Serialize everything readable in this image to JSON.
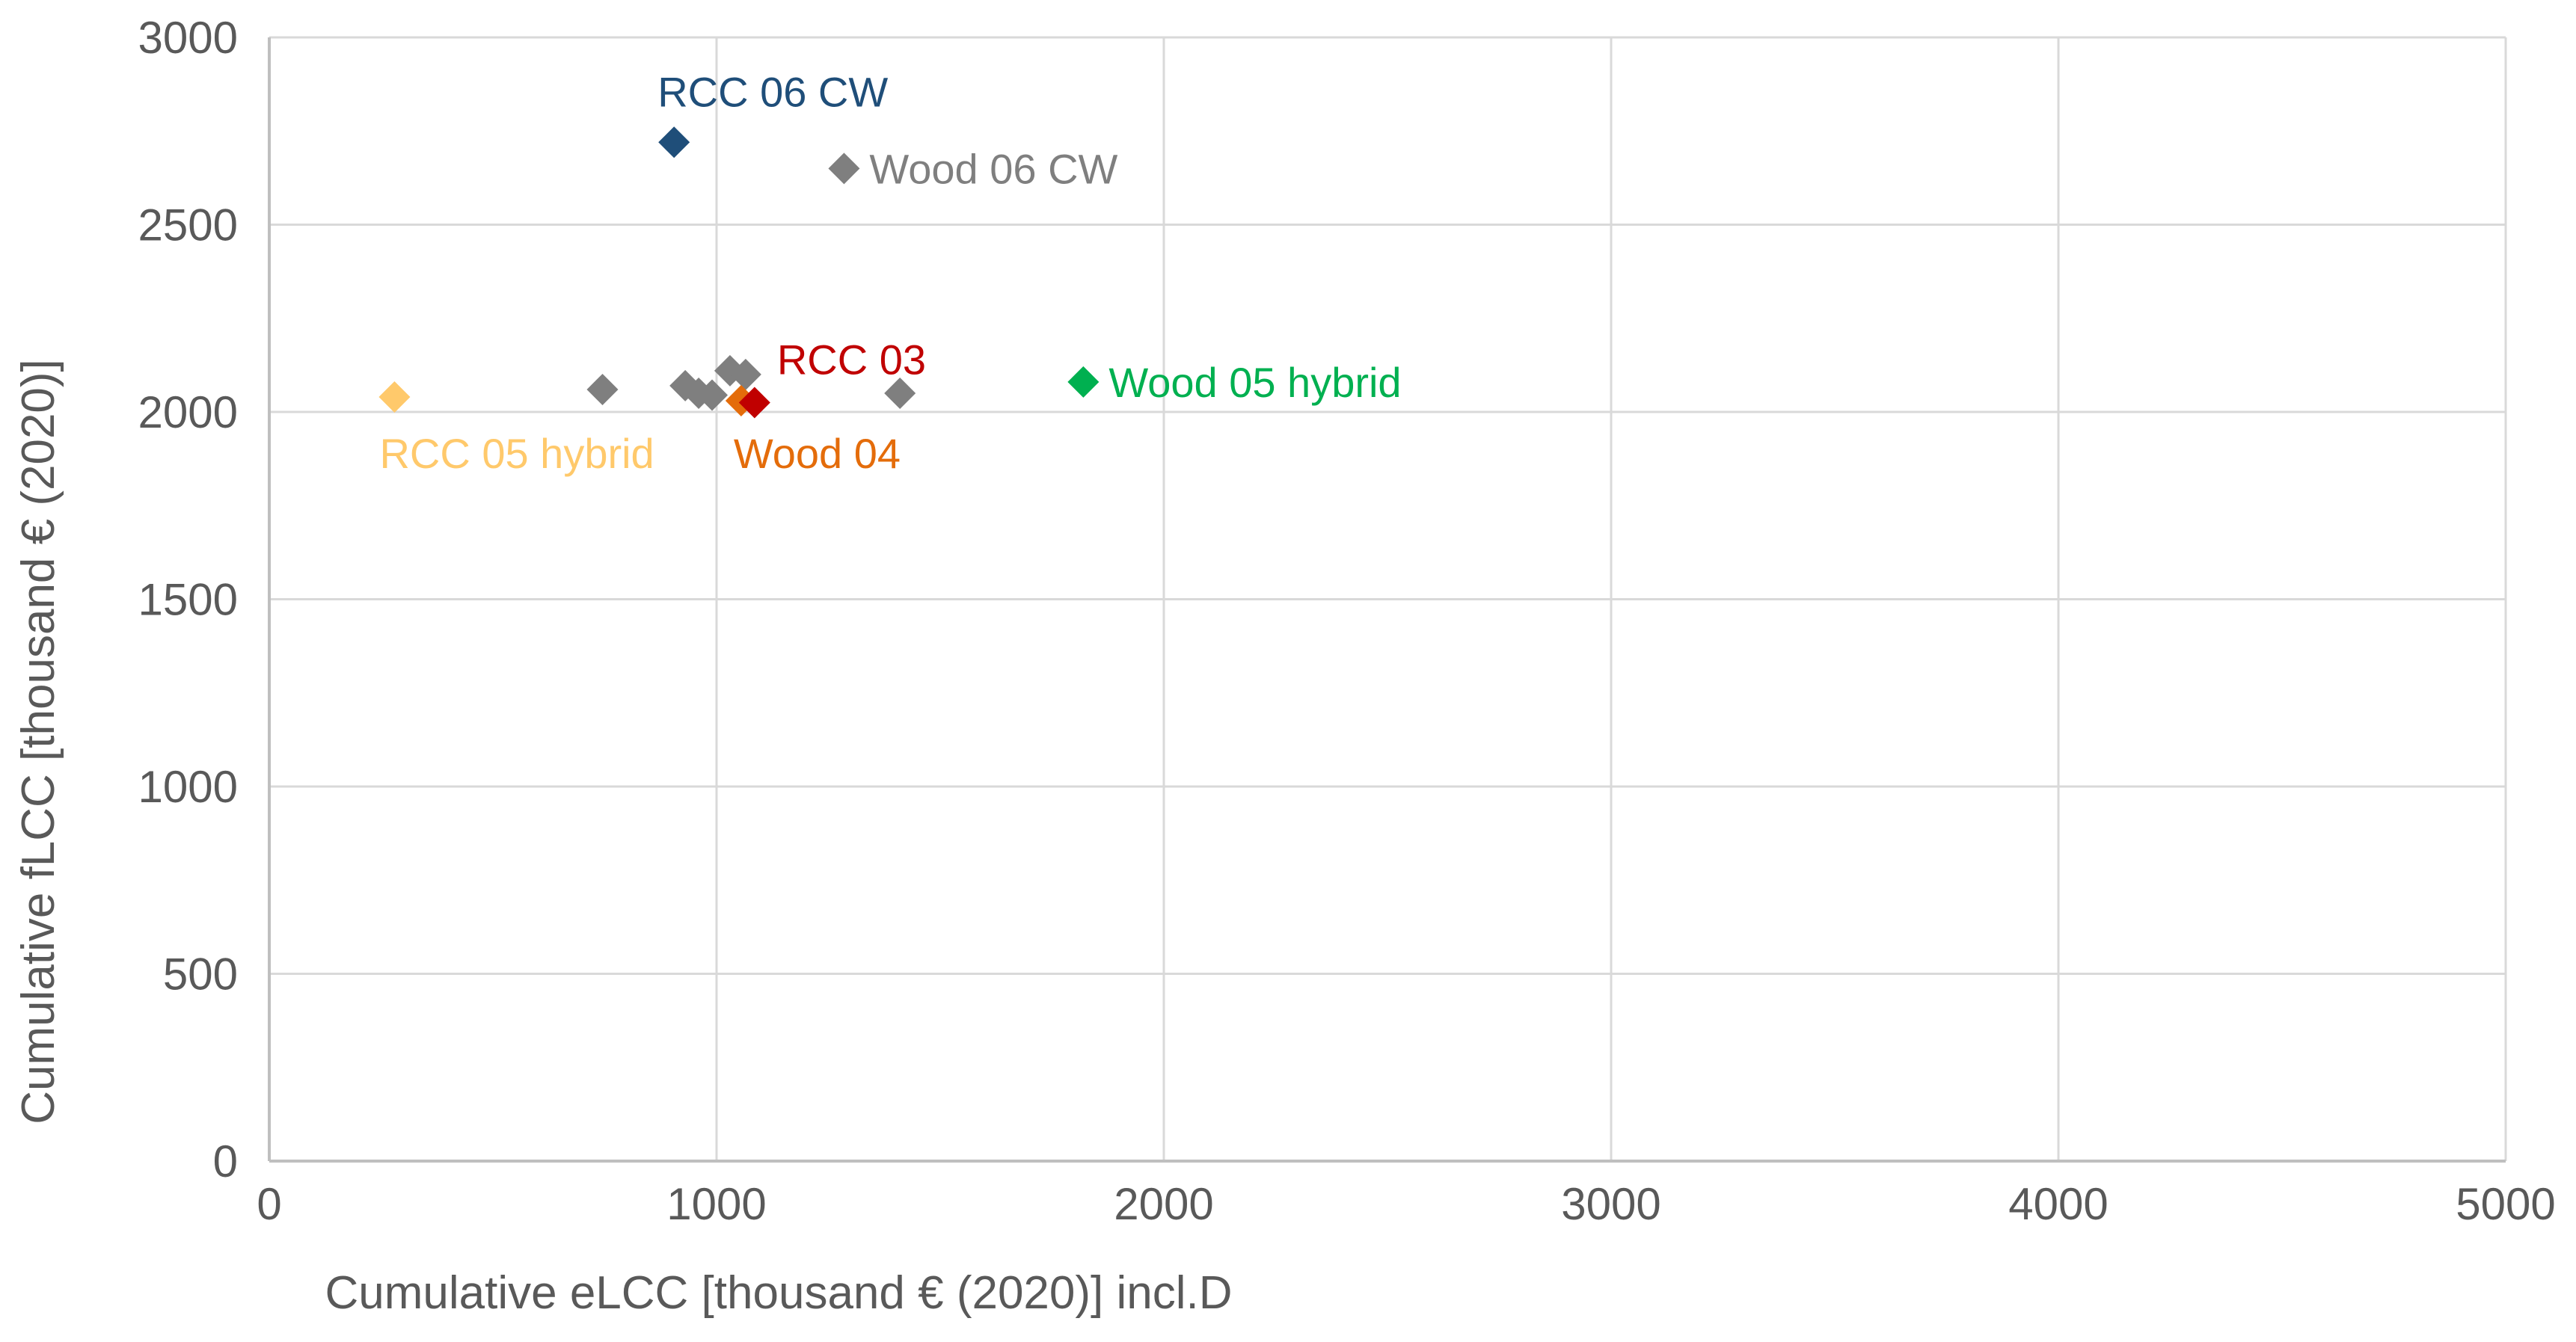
{
  "chart_data": {
    "type": "scatter",
    "title": "",
    "xlabel": "Cumulative eLCC [thousand € (2020)] incl.D",
    "ylabel": "Cumulative fLCC [thousand € (2020)]",
    "xlim": [
      0,
      5000
    ],
    "ylim": [
      0,
      3000
    ],
    "xticks": [
      0,
      1000,
      2000,
      3000,
      4000,
      5000
    ],
    "yticks": [
      0,
      500,
      1000,
      1500,
      2000,
      2500,
      3000
    ],
    "xtick_labels": [
      "0",
      "1000",
      "2000",
      "3000",
      "4000",
      "5000"
    ],
    "ytick_labels": [
      "0",
      "500",
      "1000",
      "1500",
      "2000",
      "2500",
      "3000"
    ],
    "grid": true,
    "legend": "none",
    "marker": "diamond",
    "points": [
      {
        "x": 280,
        "y": 2040,
        "label": "RCC 05 hybrid",
        "color": "#FFC96B",
        "label_pos": "below"
      },
      {
        "x": 745,
        "y": 2060,
        "label": "",
        "color": "#7F7F7F"
      },
      {
        "x": 905,
        "y": 2720,
        "label": "RCC 06 CW",
        "color": "#1F4E79",
        "label_pos": "above"
      },
      {
        "x": 930,
        "y": 2070,
        "label": "",
        "color": "#7F7F7F"
      },
      {
        "x": 960,
        "y": 2050,
        "label": "",
        "color": "#7F7F7F"
      },
      {
        "x": 990,
        "y": 2045,
        "label": "",
        "color": "#7F7F7F"
      },
      {
        "x": 1030,
        "y": 2110,
        "label": "",
        "color": "#7F7F7F"
      },
      {
        "x": 1065,
        "y": 2100,
        "label": "",
        "color": "#7F7F7F"
      },
      {
        "x": 1055,
        "y": 2030,
        "label": "Wood 04",
        "color": "#E46C0A",
        "label_pos": "below"
      },
      {
        "x": 1085,
        "y": 2025,
        "label": "RCC 03",
        "color": "#C00000",
        "label_pos": "above-right"
      },
      {
        "x": 1285,
        "y": 2650,
        "label": "Wood 06 CW",
        "color": "#7F7F7F",
        "label_pos": "right"
      },
      {
        "x": 1410,
        "y": 2050,
        "label": "",
        "color": "#7F7F7F"
      },
      {
        "x": 1820,
        "y": 2080,
        "label": "Wood 05 hybrid",
        "color": "#00B050",
        "label_pos": "right"
      }
    ]
  },
  "colors": {
    "axis": "#BFBFBF",
    "grid": "#D9D9D9",
    "text": "#595959"
  }
}
